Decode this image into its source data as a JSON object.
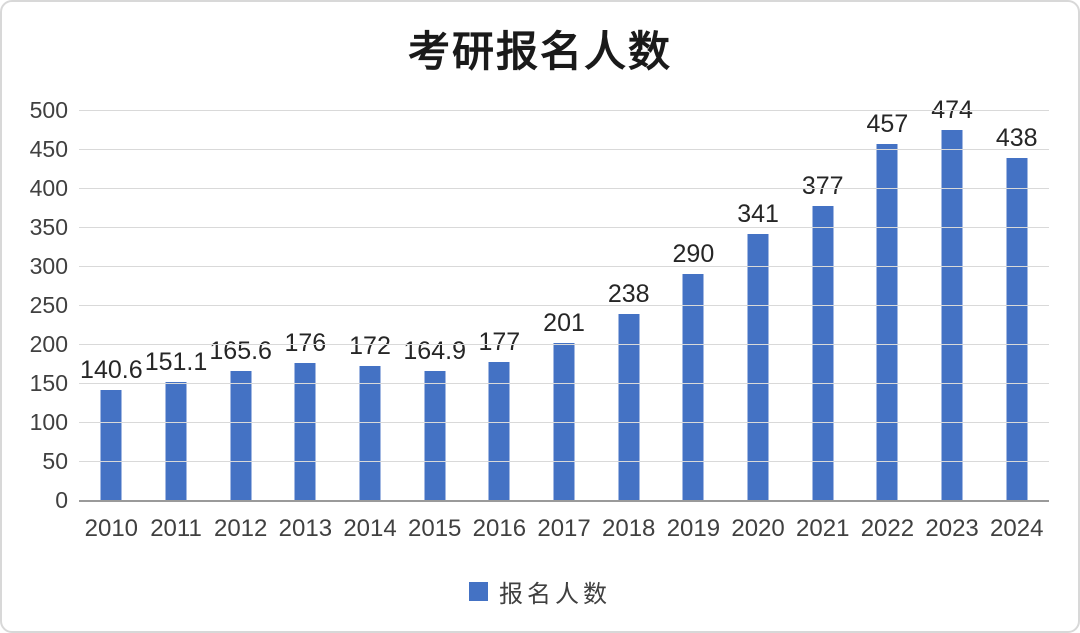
{
  "chart_data": {
    "type": "bar",
    "title": "考研报名人数",
    "categories": [
      "2010",
      "2011",
      "2012",
      "2013",
      "2014",
      "2015",
      "2016",
      "2017",
      "2018",
      "2019",
      "2020",
      "2021",
      "2022",
      "2023",
      "2024"
    ],
    "values": [
      140.6,
      151.1,
      165.6,
      176,
      172,
      164.9,
      177,
      201,
      238,
      290,
      341,
      377,
      457,
      474,
      438
    ],
    "xlabel": "",
    "ylabel": "",
    "ylim": [
      0,
      500
    ],
    "yticks": [
      0,
      50,
      100,
      150,
      200,
      250,
      300,
      350,
      400,
      450,
      500
    ],
    "grid": true,
    "bar_color": "#4472C4",
    "gridline_color": "#d9d9d9",
    "axis_line_color": "#9a9a9a",
    "legend_position": "bottom",
    "legend": {
      "label": "报名人数",
      "color": "#4472C4"
    }
  }
}
